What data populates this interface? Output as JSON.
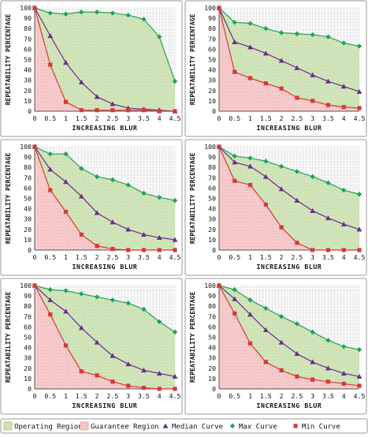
{
  "legend": {
    "items": [
      {
        "label": "Operating Region",
        "kind": "area",
        "fill": "#cfe3b6",
        "stroke": "#9bc27a"
      },
      {
        "label": "Guarantee Region",
        "kind": "area",
        "fill": "#f6c8c8",
        "stroke": "#e89b9b"
      },
      {
        "label": "Median Curve",
        "kind": "marker",
        "marker": "triangle",
        "color": "#6a2d8c"
      },
      {
        "label": "Max Curve",
        "kind": "marker",
        "marker": "diamond",
        "color": "#21a35a"
      },
      {
        "label": "Min Curve",
        "kind": "marker",
        "marker": "square",
        "color": "#d83838"
      }
    ]
  },
  "chart_data": [
    {
      "type": "line",
      "xlabel": "INCREASING BLUR",
      "ylabel": "REPEATABILITY PERCENTAGE",
      "xticks": [
        "0",
        "0.5",
        "1",
        "1.5",
        "2",
        "2.5",
        "3",
        "3.5",
        "4",
        "4.5"
      ],
      "yticks": [
        "0",
        "10",
        "20",
        "30",
        "40",
        "50",
        "60",
        "70",
        "80",
        "90",
        "100"
      ],
      "x": [
        0,
        0.5,
        1,
        1.5,
        2,
        2.5,
        3,
        3.5,
        4,
        4.5
      ],
      "xlim": [
        0,
        4.5
      ],
      "ylim": [
        0,
        100
      ],
      "grid": true,
      "series": [
        {
          "name": "Max Curve",
          "values": [
            100,
            95,
            94,
            96,
            96,
            95,
            93,
            89,
            72,
            29
          ]
        },
        {
          "name": "Median Curve",
          "values": [
            100,
            73,
            47,
            28,
            14,
            7,
            3,
            2,
            1,
            0
          ]
        },
        {
          "name": "Min Curve",
          "values": [
            100,
            45,
            9,
            1,
            1,
            1,
            1,
            1,
            0,
            0
          ]
        }
      ]
    },
    {
      "type": "line",
      "xlabel": "INCREASING BLUR",
      "ylabel": "REPEATABILITY PERCENTAGE",
      "xticks": [
        "0",
        "0.5",
        "1",
        "1.5",
        "2",
        "2.5",
        "3",
        "3.5",
        "4",
        "4.5"
      ],
      "yticks": [
        "0",
        "10",
        "20",
        "30",
        "40",
        "50",
        "60",
        "70",
        "80",
        "90",
        "100"
      ],
      "x": [
        0,
        0.5,
        1,
        1.5,
        2,
        2.5,
        3,
        3.5,
        4,
        4.5
      ],
      "xlim": [
        0,
        4.5
      ],
      "ylim": [
        0,
        100
      ],
      "grid": true,
      "series": [
        {
          "name": "Max Curve",
          "values": [
            100,
            86,
            85,
            80,
            76,
            75,
            74,
            72,
            66,
            63
          ]
        },
        {
          "name": "Median Curve",
          "values": [
            100,
            67,
            62,
            56,
            49,
            42,
            35,
            29,
            24,
            19
          ]
        },
        {
          "name": "Min Curve",
          "values": [
            100,
            38,
            32,
            27,
            22,
            13,
            10,
            6,
            4,
            3
          ]
        }
      ]
    },
    {
      "type": "line",
      "xlabel": "INCREASING BLUR",
      "ylabel": "REPEATABILITY PERCENTAGE",
      "xticks": [
        "0",
        "0.5",
        "1",
        "1.5",
        "2",
        "2.5",
        "3",
        "3.5",
        "4",
        "4.5"
      ],
      "yticks": [
        "0",
        "10",
        "20",
        "30",
        "40",
        "50",
        "60",
        "70",
        "80",
        "90",
        "100"
      ],
      "x": [
        0,
        0.5,
        1,
        1.5,
        2,
        2.5,
        3,
        3.5,
        4,
        4.5
      ],
      "xlim": [
        0,
        4.5
      ],
      "ylim": [
        0,
        100
      ],
      "grid": true,
      "series": [
        {
          "name": "Max Curve",
          "values": [
            100,
            93,
            93,
            79,
            71,
            68,
            63,
            55,
            51,
            48
          ]
        },
        {
          "name": "Median Curve",
          "values": [
            100,
            78,
            66,
            52,
            36,
            27,
            20,
            15,
            12,
            10
          ]
        },
        {
          "name": "Min Curve",
          "values": [
            100,
            58,
            37,
            15,
            4,
            1,
            0,
            0,
            0,
            0
          ]
        }
      ]
    },
    {
      "type": "line",
      "xlabel": "INCREASING BLUR",
      "ylabel": "REPEATABILITY PERCENTAGE",
      "xticks": [
        "0",
        "0.5",
        "1",
        "1.5",
        "2",
        "2.5",
        "3",
        "3.5",
        "4",
        "4.5"
      ],
      "yticks": [
        "0",
        "10",
        "20",
        "30",
        "40",
        "50",
        "60",
        "70",
        "80",
        "90",
        "100"
      ],
      "x": [
        0,
        0.5,
        1,
        1.5,
        2,
        2.5,
        3,
        3.5,
        4,
        4.5
      ],
      "xlim": [
        0,
        4.5
      ],
      "ylim": [
        0,
        100
      ],
      "grid": true,
      "series": [
        {
          "name": "Max Curve",
          "values": [
            100,
            91,
            89,
            86,
            81,
            76,
            71,
            65,
            58,
            54
          ]
        },
        {
          "name": "Median Curve",
          "values": [
            100,
            85,
            81,
            71,
            59,
            48,
            38,
            31,
            25,
            20
          ]
        },
        {
          "name": "Min Curve",
          "values": [
            100,
            67,
            63,
            44,
            22,
            7,
            0,
            0,
            0,
            0
          ]
        }
      ]
    },
    {
      "type": "line",
      "xlabel": "INCREASING BLUR",
      "ylabel": "REPEATABILITY PERCENTAGE",
      "xticks": [
        "0",
        "0.5",
        "1",
        "1.5",
        "2",
        "2.5",
        "3",
        "3.5",
        "4",
        "4.5"
      ],
      "yticks": [
        "0",
        "10",
        "20",
        "30",
        "40",
        "50",
        "60",
        "70",
        "80",
        "90",
        "100"
      ],
      "x": [
        0,
        0.5,
        1,
        1.5,
        2,
        2.5,
        3,
        3.5,
        4,
        4.5
      ],
      "xlim": [
        0,
        4.5
      ],
      "ylim": [
        0,
        100
      ],
      "grid": true,
      "series": [
        {
          "name": "Max Curve",
          "values": [
            100,
            96,
            95,
            92,
            89,
            86,
            83,
            77,
            65,
            55
          ]
        },
        {
          "name": "Median Curve",
          "values": [
            100,
            86,
            75,
            59,
            45,
            32,
            24,
            18,
            15,
            12
          ]
        },
        {
          "name": "Min Curve",
          "values": [
            100,
            72,
            42,
            17,
            13,
            7,
            3,
            1,
            0,
            0
          ]
        }
      ]
    },
    {
      "type": "line",
      "xlabel": "INCREASING BLUR",
      "ylabel": "REPEATABILITY PERCENTAGE",
      "xticks": [
        "0",
        "0.5",
        "1",
        "1.5",
        "2",
        "2.5",
        "3",
        "3.5",
        "4",
        "4.5"
      ],
      "yticks": [
        "0",
        "10",
        "20",
        "30",
        "40",
        "50",
        "60",
        "70",
        "80",
        "90",
        "100"
      ],
      "x": [
        0,
        0.5,
        1,
        1.5,
        2,
        2.5,
        3,
        3.5,
        4,
        4.5
      ],
      "xlim": [
        0,
        4.5
      ],
      "ylim": [
        0,
        100
      ],
      "grid": true,
      "series": [
        {
          "name": "Max Curve",
          "values": [
            100,
            96,
            86,
            78,
            70,
            63,
            55,
            47,
            41,
            38
          ]
        },
        {
          "name": "Median Curve",
          "values": [
            100,
            87,
            72,
            57,
            45,
            34,
            26,
            20,
            15,
            12
          ]
        },
        {
          "name": "Min Curve",
          "values": [
            100,
            73,
            44,
            26,
            18,
            12,
            9,
            7,
            5,
            3
          ]
        }
      ]
    }
  ]
}
